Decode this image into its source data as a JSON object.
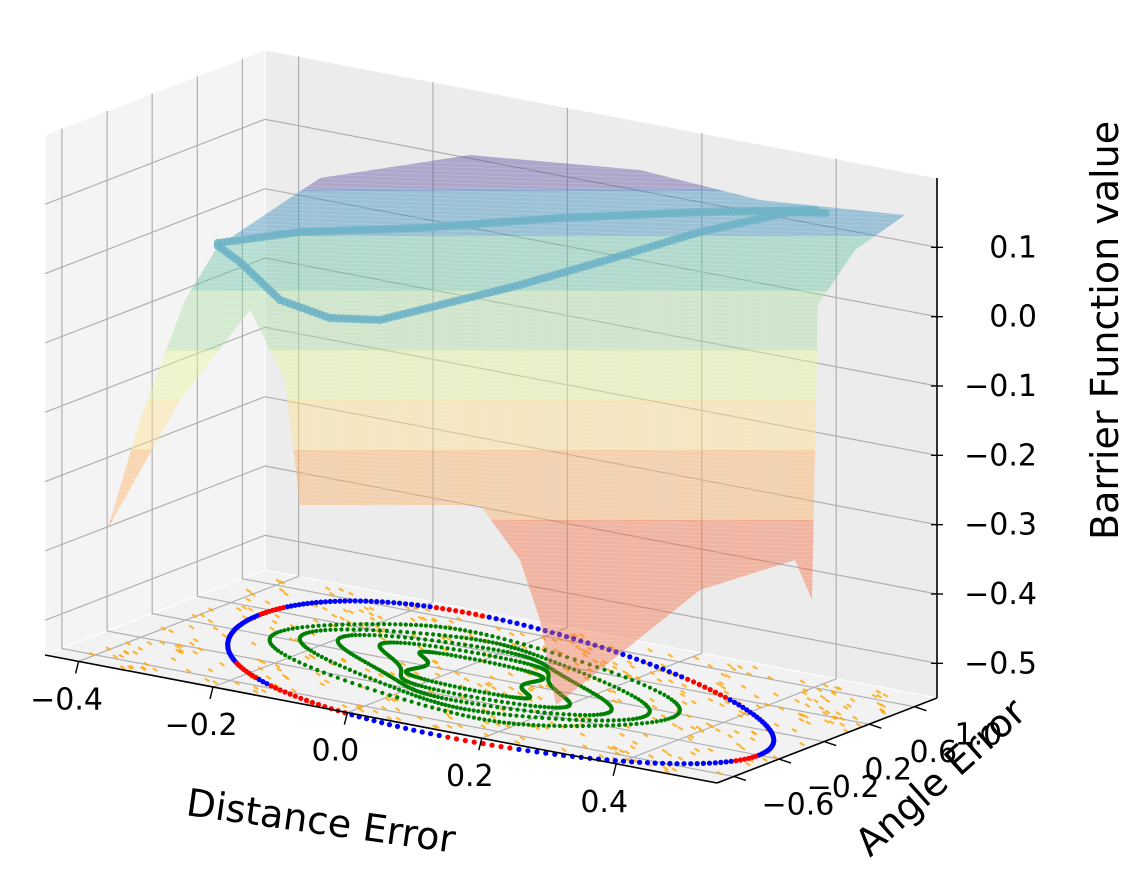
{
  "chart_data": {
    "type": "surface3d",
    "xlabel": "Distance Error",
    "ylabel": "Angle Error",
    "zlabel": "Barrier Function value",
    "xticks": [
      "−0.4",
      "−0.2",
      "0.0",
      "0.2",
      "0.4"
    ],
    "yticks": [
      "−0.6",
      "−0.2",
      "0.2",
      "0.6",
      "1.0"
    ],
    "zticks": [
      "0.1",
      "0.0",
      "−0.1",
      "−0.2",
      "−0.3",
      "−0.4",
      "−0.5"
    ],
    "xticks_values": [
      -0.4,
      -0.2,
      0.0,
      0.2,
      0.4
    ],
    "yticks_values": [
      -0.6,
      -0.2,
      0.2,
      0.6,
      1.0
    ],
    "zticks_values": [
      0.1,
      0.0,
      -0.1,
      -0.2,
      -0.3,
      -0.4,
      -0.5
    ],
    "xlim": [
      -0.45,
      0.55
    ],
    "ylim": [
      -0.75,
      1.2
    ],
    "zlim": [
      -0.55,
      0.2
    ],
    "grid": true,
    "colormap": "Spectral",
    "series": [
      {
        "kind": "surface",
        "peak_value": 0.12,
        "colors": [
          "#5e4fa2",
          "#3288bd",
          "#66c2a5",
          "#abdda4",
          "#e6f598",
          "#fee08b",
          "#fdae61",
          "#f46d43",
          "#d53e4f"
        ]
      },
      {
        "kind": "zero-level-set",
        "color": "#6fb3c7",
        "value": 0.0
      },
      {
        "kind": "projected-boundary",
        "colors": [
          "#0000ff",
          "#ff0000"
        ]
      },
      {
        "kind": "trajectories",
        "color": "#008000"
      },
      {
        "kind": "sample-points",
        "color": "#ffa500"
      }
    ]
  }
}
